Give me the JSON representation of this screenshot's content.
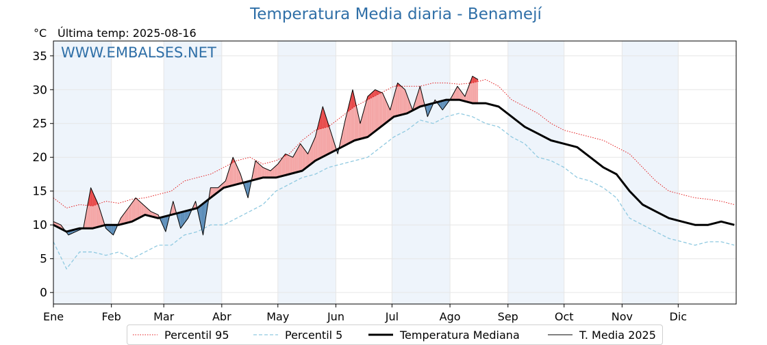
{
  "header": {
    "title": "Temperatura Media diaria - Benamejí",
    "unit": "°C",
    "last_temp": "Última temp: 2025-08-16"
  },
  "watermark": "WWW.EMBALSES.NET",
  "legend": {
    "p95": "Percentil 95",
    "p5": "Percentil 5",
    "median": "Temperatura Mediana",
    "current": "T. Media 2025"
  },
  "colors": {
    "p95": "#e31a1c",
    "p5": "#8fc9e0",
    "median": "#000000",
    "current": "#000000",
    "above_fill": "#f4a6a6",
    "above_strong": "#e84b4b",
    "below_fill": "#5e8fba",
    "band": "#eef4fb",
    "title": "#2f6fa7"
  },
  "chart_data": {
    "type": "line",
    "title": "Temperatura Media diaria - Benamejí",
    "ylabel": "°C",
    "ylim": [
      -1.7,
      37.2
    ],
    "yticks": [
      0,
      5,
      10,
      15,
      20,
      25,
      30,
      35
    ],
    "xlim": [
      1,
      366
    ],
    "months": [
      "Ene",
      "Feb",
      "Mar",
      "Abr",
      "May",
      "Jun",
      "Jul",
      "Ago",
      "Sep",
      "Oct",
      "Nov",
      "Dic"
    ],
    "month_start_day": [
      1,
      32,
      60,
      91,
      121,
      152,
      182,
      213,
      244,
      274,
      305,
      335
    ],
    "grid": true,
    "legend_position": "bottom",
    "series": [
      {
        "name": "Percentil 95",
        "style": "dotted",
        "x": [
          1,
          8,
          15,
          22,
          29,
          36,
          43,
          50,
          57,
          64,
          71,
          78,
          85,
          92,
          99,
          106,
          113,
          120,
          127,
          134,
          141,
          148,
          155,
          162,
          169,
          176,
          183,
          190,
          197,
          204,
          211,
          218,
          225,
          232,
          239,
          246,
          253,
          260,
          267,
          274,
          281,
          288,
          295,
          302,
          309,
          316,
          323,
          330,
          337,
          344,
          351,
          358,
          365
        ],
        "values": [
          14.0,
          12.5,
          13.0,
          12.8,
          13.5,
          13.2,
          13.8,
          14.0,
          14.5,
          15.0,
          16.5,
          17.0,
          17.5,
          18.5,
          19.5,
          20.0,
          19.0,
          19.5,
          20.5,
          22.5,
          24.0,
          24.5,
          26.0,
          27.5,
          28.5,
          29.5,
          30.5,
          30.5,
          30.5,
          31.0,
          31.0,
          30.8,
          31.0,
          31.5,
          30.5,
          28.5,
          27.5,
          26.5,
          25.0,
          24.0,
          23.5,
          23.0,
          22.5,
          21.5,
          20.5,
          18.5,
          16.5,
          15.0,
          14.5,
          14.0,
          13.8,
          13.5,
          13.0
        ]
      },
      {
        "name": "Percentil 5",
        "style": "dashed",
        "x": [
          1,
          8,
          15,
          22,
          29,
          36,
          43,
          50,
          57,
          64,
          71,
          78,
          85,
          92,
          99,
          106,
          113,
          120,
          127,
          134,
          141,
          148,
          155,
          162,
          169,
          176,
          183,
          190,
          197,
          204,
          211,
          218,
          225,
          232,
          239,
          246,
          253,
          260,
          267,
          274,
          281,
          288,
          295,
          302,
          309,
          316,
          323,
          330,
          337,
          344,
          351,
          358,
          365
        ],
        "values": [
          7.5,
          3.5,
          6.0,
          6.0,
          5.5,
          6.0,
          5.0,
          6.0,
          7.0,
          7.0,
          8.5,
          9.0,
          10.0,
          10.0,
          11.0,
          12.0,
          13.0,
          15.0,
          16.0,
          17.0,
          17.5,
          18.5,
          19.0,
          19.5,
          20.0,
          21.5,
          23.0,
          24.0,
          25.5,
          25.0,
          26.0,
          26.5,
          26.0,
          25.0,
          24.5,
          23.0,
          22.0,
          20.0,
          19.5,
          18.5,
          17.0,
          16.5,
          15.5,
          14.0,
          11.0,
          10.0,
          9.0,
          8.0,
          7.5,
          7.0,
          7.5,
          7.5,
          7.0
        ]
      },
      {
        "name": "Temperatura Mediana",
        "style": "solid-thick",
        "x": [
          1,
          8,
          15,
          22,
          29,
          36,
          43,
          50,
          57,
          64,
          71,
          78,
          85,
          92,
          99,
          106,
          113,
          120,
          127,
          134,
          141,
          148,
          155,
          162,
          169,
          176,
          183,
          190,
          197,
          204,
          211,
          218,
          225,
          232,
          239,
          246,
          253,
          260,
          267,
          274,
          281,
          288,
          295,
          302,
          309,
          316,
          323,
          330,
          337,
          344,
          351,
          358,
          365
        ],
        "values": [
          10.0,
          9.0,
          9.5,
          9.5,
          10.0,
          10.0,
          10.5,
          11.5,
          11.0,
          11.5,
          12.0,
          12.5,
          14.0,
          15.5,
          16.0,
          16.5,
          17.0,
          17.0,
          17.5,
          18.0,
          19.5,
          20.5,
          21.5,
          22.5,
          23.0,
          24.5,
          26.0,
          26.5,
          27.5,
          28.0,
          28.5,
          28.5,
          28.0,
          28.0,
          27.5,
          26.0,
          24.5,
          23.5,
          22.5,
          22.0,
          21.5,
          20.0,
          18.5,
          17.5,
          15.0,
          13.0,
          12.0,
          11.0,
          10.5,
          10.0,
          10.0,
          10.5,
          10.0
        ]
      },
      {
        "name": "T. Media 2025",
        "style": "solid-thin",
        "x": [
          1,
          5,
          9,
          13,
          17,
          21,
          25,
          29,
          33,
          37,
          41,
          45,
          49,
          53,
          57,
          61,
          65,
          69,
          73,
          77,
          81,
          85,
          89,
          93,
          97,
          101,
          105,
          109,
          113,
          117,
          121,
          125,
          129,
          133,
          137,
          141,
          145,
          149,
          153,
          157,
          161,
          165,
          169,
          173,
          177,
          181,
          185,
          189,
          193,
          197,
          201,
          205,
          209,
          213,
          217,
          221,
          225,
          228
        ],
        "values": [
          10.5,
          10.0,
          8.5,
          9.0,
          9.5,
          15.5,
          13.0,
          9.5,
          8.5,
          11.0,
          12.5,
          14.0,
          13.0,
          12.0,
          11.5,
          9.0,
          13.5,
          9.5,
          11.0,
          13.5,
          8.5,
          15.5,
          15.5,
          16.5,
          20.0,
          17.5,
          14.0,
          19.5,
          18.5,
          18.0,
          19.0,
          20.5,
          20.0,
          22.0,
          20.5,
          23.0,
          27.5,
          24.0,
          20.5,
          25.5,
          30.0,
          25.0,
          29.0,
          30.0,
          29.5,
          27.0,
          31.0,
          30.0,
          27.0,
          30.5,
          26.0,
          28.5,
          27.0,
          28.5,
          30.5,
          29.0,
          32.0,
          31.5
        ]
      }
    ]
  }
}
